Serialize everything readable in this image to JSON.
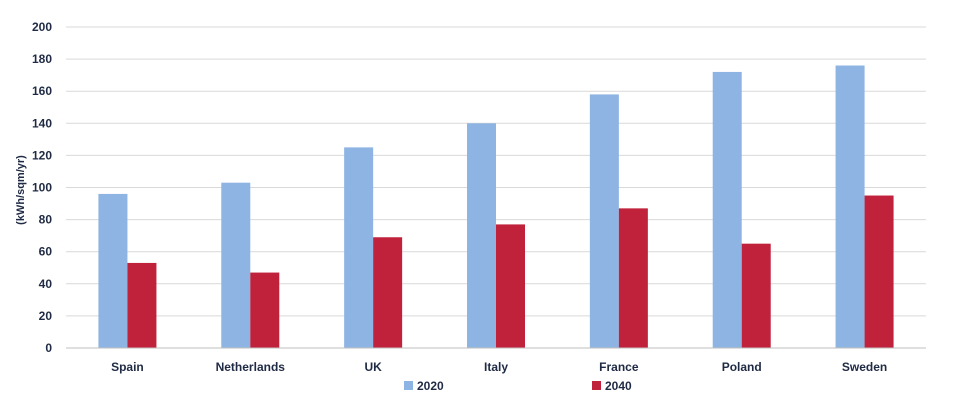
{
  "chart_data": {
    "type": "bar",
    "title": "",
    "xlabel": "",
    "ylabel": "(kWh/sqm/yr)",
    "ylim": [
      0,
      200
    ],
    "yticks": [
      0,
      20,
      40,
      60,
      80,
      100,
      120,
      140,
      160,
      180,
      200
    ],
    "grid": true,
    "legend_position": "bottom",
    "categories": [
      "Spain",
      "Netherlands",
      "UK",
      "Italy",
      "France",
      "Poland",
      "Sweden"
    ],
    "series": [
      {
        "name": "2020",
        "color": "#8db4e2",
        "values": [
          96,
          103,
          125,
          140,
          158,
          172,
          176
        ]
      },
      {
        "name": "2040",
        "color": "#c0223b",
        "values": [
          53,
          47,
          69,
          77,
          87,
          65,
          95
        ]
      }
    ]
  }
}
